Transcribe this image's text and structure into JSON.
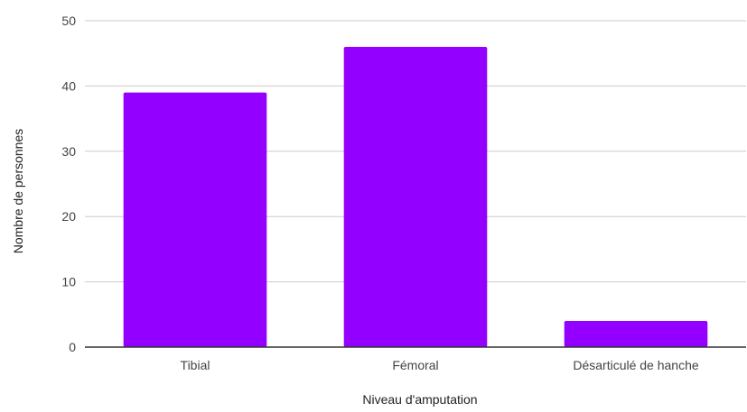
{
  "chart_data": {
    "type": "bar",
    "categories": [
      "Tibial",
      "Fémoral",
      "Désarticulé de hanche"
    ],
    "values": [
      39,
      46,
      4
    ],
    "title": "",
    "xlabel": "Niveau d'amputation",
    "ylabel": "Nombre de personnes",
    "ylim": [
      0,
      50
    ],
    "yticks": [
      0,
      10,
      20,
      30,
      40,
      50
    ],
    "grid": true,
    "legend": "none",
    "bar_color": "#9400ff"
  }
}
